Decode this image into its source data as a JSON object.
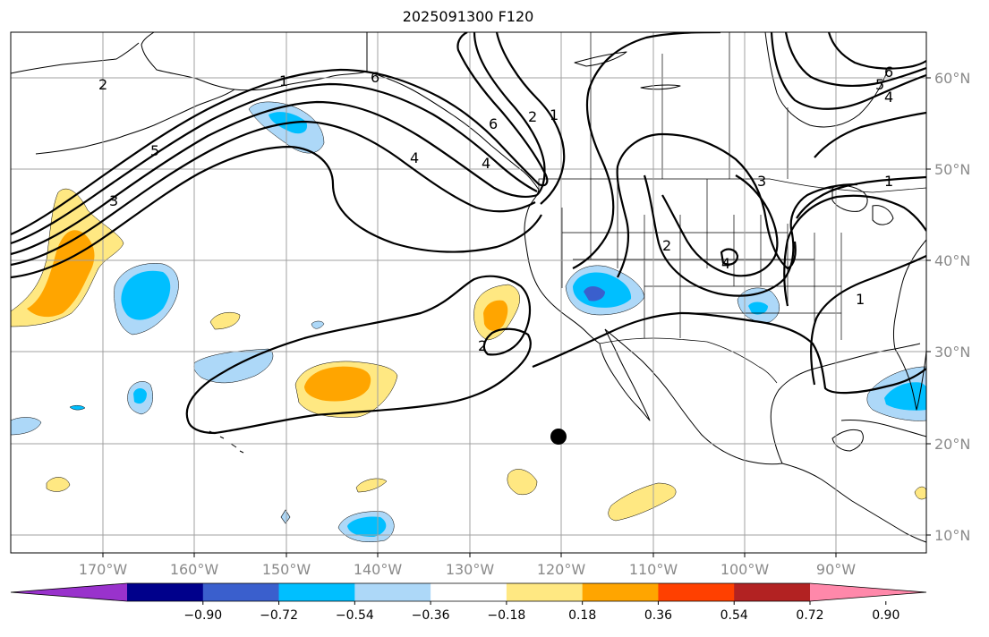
{
  "title": "2025091300 F120",
  "latitude_labels": [
    "60°N",
    "50°N",
    "40°N",
    "30°N",
    "20°N",
    "10°N"
  ],
  "longitude_labels": [
    "170°W",
    "160°W",
    "150°W",
    "140°W",
    "130°W",
    "120°W",
    "110°W",
    "100°W",
    "90°W"
  ],
  "colorbar": {
    "tick_labels": [
      "−0.90",
      "−0.72",
      "−0.54",
      "−0.36",
      "−0.18",
      "0.18",
      "0.36",
      "0.54",
      "0.72",
      "0.90"
    ],
    "colors": [
      "#9932cc",
      "#00008b",
      "#3a5fcd",
      "#00bfff",
      "#add8f8",
      "#ffffff",
      "#ffe882",
      "#ffa500",
      "#ff4000",
      "#b22222",
      "#ff88aa"
    ]
  },
  "contour_labels": [
    "1",
    "2",
    "3",
    "4",
    "5",
    "6",
    "4",
    "6",
    "2",
    "1",
    "6",
    "5",
    "4",
    "3",
    "1",
    "2",
    "4",
    "1",
    "2"
  ],
  "colors": {
    "pos_light": "#ffe882",
    "pos_mid": "#ffa500",
    "neg_light": "#add8f8",
    "neg_mid": "#00bfff",
    "neg_dark": "#3a5fcd",
    "contour": "#000000",
    "grid": "#a0a0a0",
    "axis_label": "#8a8a8a"
  },
  "marker": {
    "label": "storm-center-dot",
    "lon": -120.5,
    "lat": 20.5
  }
}
